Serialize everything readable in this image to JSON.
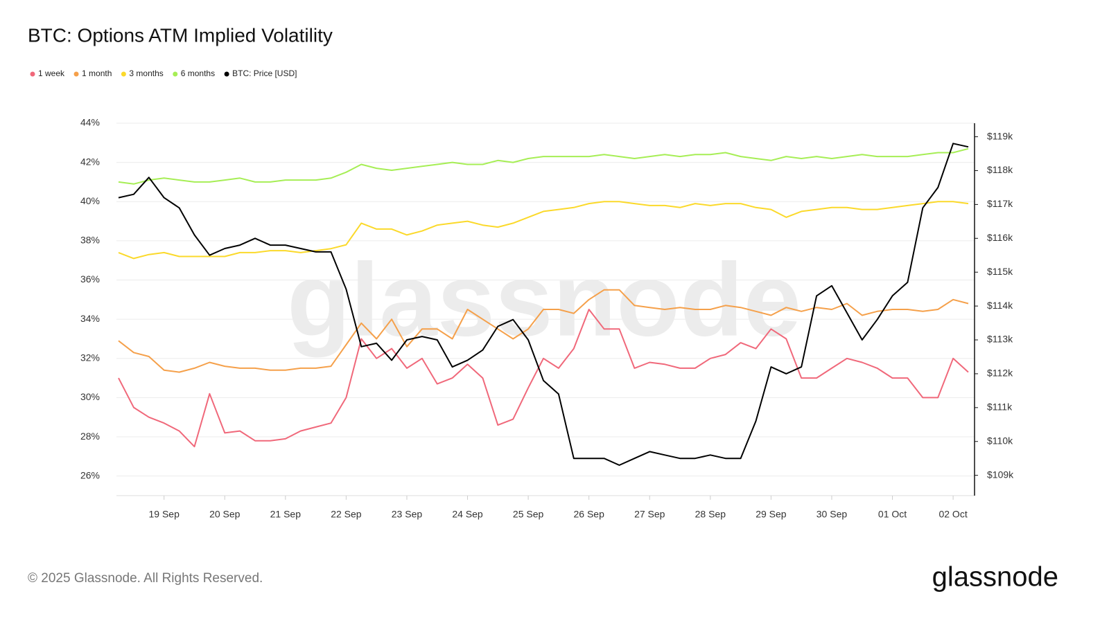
{
  "chart_data": {
    "type": "line",
    "title": "BTC: Options ATM Implied Volatility",
    "watermark": "glassnode",
    "footer": "© 2025 Glassnode. All Rights Reserved.",
    "logo": "glassnode",
    "categories": [
      null,
      null,
      null,
      "19 Sep",
      null,
      null,
      null,
      "20 Sep",
      null,
      null,
      null,
      "21 Sep",
      null,
      null,
      null,
      "22 Sep",
      null,
      null,
      null,
      "23 Sep",
      null,
      null,
      null,
      "24 Sep",
      null,
      null,
      null,
      "25 Sep",
      null,
      null,
      null,
      "26 Sep",
      null,
      null,
      null,
      "27 Sep",
      null,
      null,
      null,
      "28 Sep",
      null,
      null,
      null,
      "29 Sep",
      null,
      null,
      null,
      "30 Sep",
      null,
      null,
      null,
      "01 Oct",
      null,
      null,
      null,
      "02 Oct",
      null
    ],
    "ylim": [
      25,
      44
    ],
    "yticks": [
      {
        "value": 26,
        "label": "26%"
      },
      {
        "value": 28,
        "label": "28%"
      },
      {
        "value": 30,
        "label": "30%"
      },
      {
        "value": 32,
        "label": "32%"
      },
      {
        "value": 34,
        "label": "34%"
      },
      {
        "value": 36,
        "label": "36%"
      },
      {
        "value": 38,
        "label": "38%"
      },
      {
        "value": 40,
        "label": "40%"
      },
      {
        "value": 42,
        "label": "42%"
      },
      {
        "value": 44,
        "label": "44%"
      }
    ],
    "y2lim": [
      108.4,
      119.4
    ],
    "y2ticks": [
      {
        "value": 109,
        "label": "$109k"
      },
      {
        "value": 110,
        "label": "$110k"
      },
      {
        "value": 111,
        "label": "$111k"
      },
      {
        "value": 112,
        "label": "$112k"
      },
      {
        "value": 113,
        "label": "$113k"
      },
      {
        "value": 114,
        "label": "$114k"
      },
      {
        "value": 115,
        "label": "$115k"
      },
      {
        "value": 116,
        "label": "$116k"
      },
      {
        "value": 117,
        "label": "$117k"
      },
      {
        "value": 118,
        "label": "$118k"
      },
      {
        "value": 119,
        "label": "$119k"
      }
    ],
    "grid": true,
    "series": [
      {
        "name": "1 week",
        "color": "#f0687a",
        "values": [
          31.0,
          29.5,
          29.0,
          28.7,
          28.3,
          27.5,
          30.2,
          28.2,
          28.3,
          27.8,
          27.8,
          27.9,
          28.3,
          28.5,
          28.7,
          30.0,
          33.0,
          32.0,
          32.5,
          31.5,
          32.0,
          30.7,
          31.0,
          31.7,
          31.0,
          28.6,
          28.9,
          30.5,
          32.0,
          31.5,
          32.5,
          34.5,
          33.5,
          33.5,
          31.5,
          31.8,
          31.7,
          31.5,
          31.5,
          32.0,
          32.2,
          32.8,
          32.5,
          33.5,
          33.0,
          31.0,
          31.0,
          31.5,
          32.0,
          31.8,
          31.5,
          31.0,
          31.0,
          30.0,
          30.0,
          32.0,
          31.3
        ]
      },
      {
        "name": "1 month",
        "color": "#f5a04a",
        "values": [
          32.9,
          32.3,
          32.1,
          31.4,
          31.3,
          31.5,
          31.8,
          31.6,
          31.5,
          31.5,
          31.4,
          31.4,
          31.5,
          31.5,
          31.6,
          32.7,
          33.8,
          33.0,
          34.0,
          32.6,
          33.5,
          33.5,
          33.0,
          34.5,
          34.0,
          33.5,
          33.0,
          33.5,
          34.5,
          34.5,
          34.3,
          35.0,
          35.5,
          35.5,
          34.7,
          34.6,
          34.5,
          34.6,
          34.5,
          34.5,
          34.7,
          34.6,
          34.4,
          34.2,
          34.6,
          34.4,
          34.6,
          34.5,
          34.8,
          34.2,
          34.4,
          34.5,
          34.5,
          34.4,
          34.5,
          35.0,
          34.8
        ]
      },
      {
        "name": "3 months",
        "color": "#fbd92a",
        "values": [
          37.4,
          37.1,
          37.3,
          37.4,
          37.2,
          37.2,
          37.2,
          37.2,
          37.4,
          37.4,
          37.5,
          37.5,
          37.4,
          37.5,
          37.6,
          37.8,
          38.9,
          38.6,
          38.6,
          38.3,
          38.5,
          38.8,
          38.9,
          39.0,
          38.8,
          38.7,
          38.9,
          39.2,
          39.5,
          39.6,
          39.7,
          39.9,
          40.0,
          40.0,
          39.9,
          39.8,
          39.8,
          39.7,
          39.9,
          39.8,
          39.9,
          39.9,
          39.7,
          39.6,
          39.2,
          39.5,
          39.6,
          39.7,
          39.7,
          39.6,
          39.6,
          39.7,
          39.8,
          39.9,
          40.0,
          40.0,
          39.9
        ]
      },
      {
        "name": "6 months",
        "color": "#a6ee55",
        "values": [
          41.0,
          40.9,
          41.1,
          41.2,
          41.1,
          41.0,
          41.0,
          41.1,
          41.2,
          41.0,
          41.0,
          41.1,
          41.1,
          41.1,
          41.2,
          41.5,
          41.9,
          41.7,
          41.6,
          41.7,
          41.8,
          41.9,
          42.0,
          41.9,
          41.9,
          42.1,
          42.0,
          42.2,
          42.3,
          42.3,
          42.3,
          42.3,
          42.4,
          42.3,
          42.2,
          42.3,
          42.4,
          42.3,
          42.4,
          42.4,
          42.5,
          42.3,
          42.2,
          42.1,
          42.3,
          42.2,
          42.3,
          42.2,
          42.3,
          42.4,
          42.3,
          42.3,
          42.3,
          42.4,
          42.5,
          42.5,
          42.7
        ]
      },
      {
        "name": "BTC: Price [USD]",
        "color": "#000000",
        "axis": "y2",
        "values": [
          117.2,
          117.3,
          117.8,
          117.2,
          116.9,
          116.1,
          115.5,
          115.7,
          115.8,
          116.0,
          115.8,
          115.8,
          115.7,
          115.6,
          115.6,
          114.5,
          112.8,
          112.9,
          112.4,
          113.0,
          113.1,
          113.0,
          112.2,
          112.4,
          112.7,
          113.4,
          113.6,
          113.0,
          111.8,
          111.4,
          109.5,
          109.5,
          109.5,
          109.3,
          109.5,
          109.7,
          109.6,
          109.5,
          109.5,
          109.6,
          109.5,
          109.5,
          110.6,
          112.2,
          112.0,
          112.2,
          114.3,
          114.6,
          113.8,
          113.0,
          113.6,
          114.3,
          114.7,
          116.9,
          117.5,
          118.8,
          118.7
        ]
      }
    ]
  }
}
